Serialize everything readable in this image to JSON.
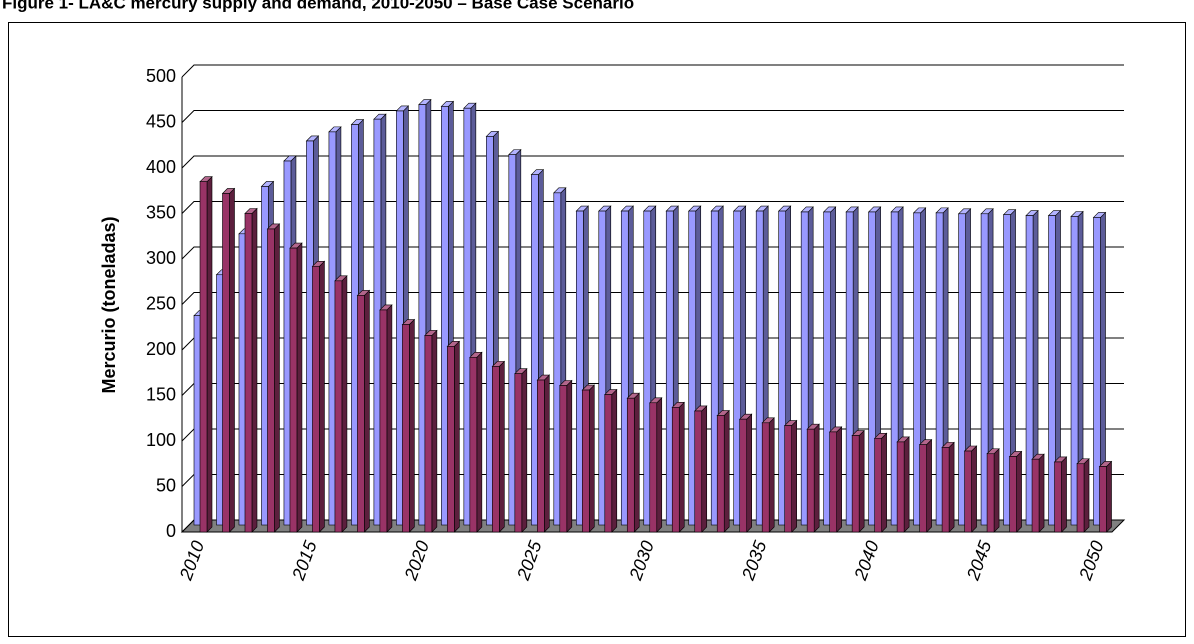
{
  "chart_data": {
    "type": "bar3d",
    "title": "Figure 1- LA&C mercury supply and demand, 2010-2050 – Base Case Scenario",
    "y_label": "Mercurio (toneladas)",
    "categories": [
      "2010",
      null,
      null,
      null,
      null,
      "2015",
      null,
      null,
      null,
      null,
      "2020",
      null,
      null,
      null,
      null,
      "2025",
      null,
      null,
      null,
      null,
      "2030",
      null,
      null,
      null,
      null,
      "2035",
      null,
      null,
      null,
      null,
      "2040",
      null,
      null,
      null,
      null,
      "2045",
      null,
      null,
      null,
      null,
      "2050"
    ],
    "series": [
      {
        "color": "#9999ff",
        "values": [
          230,
          275,
          320,
          372,
          400,
          422,
          432,
          440,
          446,
          455,
          462,
          460,
          458,
          427,
          407,
          385,
          365,
          345,
          345,
          345,
          345,
          345,
          345,
          345,
          345,
          345,
          345,
          344,
          344,
          344,
          344,
          344,
          343,
          343,
          342,
          342,
          341,
          340,
          340,
          339,
          338
        ]
      },
      {
        "color": "#993366",
        "values": [
          385,
          372,
          350,
          333,
          312,
          292,
          276,
          260,
          244,
          228,
          216,
          204,
          192,
          182,
          174,
          167,
          161,
          156,
          151,
          147,
          142,
          137,
          133,
          128,
          124,
          120,
          117,
          113,
          110,
          106,
          103,
          99,
          96,
          93,
          89,
          86,
          83,
          80,
          77,
          75,
          72
        ]
      }
    ],
    "ylim": [
      0,
      500
    ],
    "yticks": [
      0,
      50,
      100,
      150,
      200,
      250,
      300,
      350,
      400,
      450,
      500
    ],
    "grid": true
  }
}
